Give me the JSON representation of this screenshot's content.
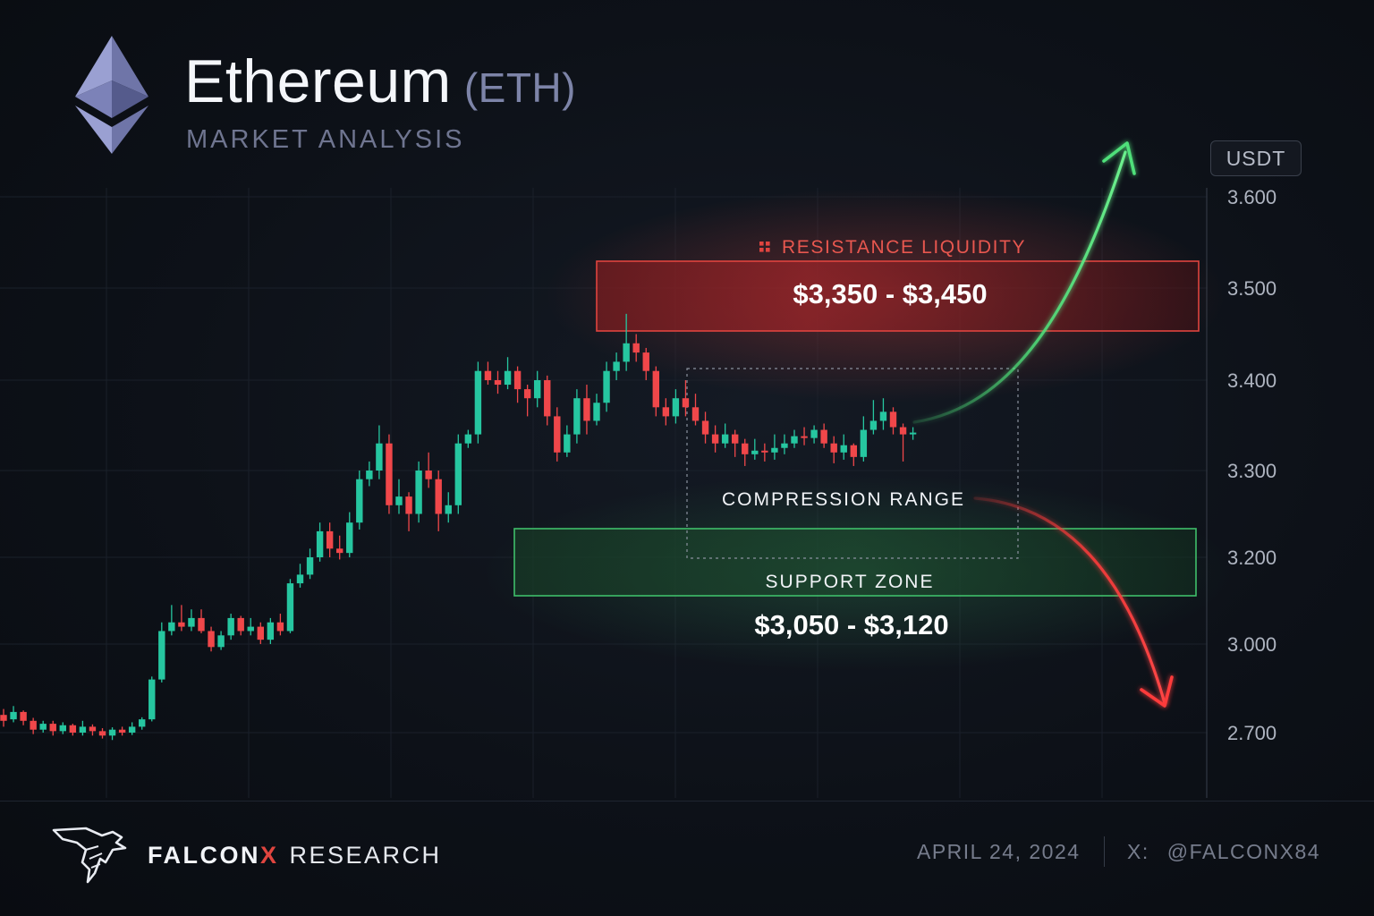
{
  "header": {
    "title": "Ethereum",
    "ticker": "(ETH)",
    "subtitle": "MARKET ANALYSIS",
    "unit_label": "USDT"
  },
  "colors": {
    "bull": "#26c6a0",
    "bear": "#f0474a",
    "resistance": "#e0443f",
    "support": "#3fbf6a",
    "up_arrow": "#4fe07a",
    "down_arrow": "#ff3b3b",
    "eth_logo": "#8d93c4"
  },
  "chart_data": {
    "type": "candlestick",
    "y_axis": {
      "tick_labels": [
        "3.600",
        "3.500",
        "3.400",
        "3.300",
        "3.200",
        "3.000",
        "2.700"
      ],
      "side": "right"
    },
    "grid": true,
    "candles": [
      [
        2760,
        2740,
        2780,
        2720
      ],
      [
        2745,
        2770,
        2790,
        2735
      ],
      [
        2770,
        2740,
        2775,
        2725
      ],
      [
        2740,
        2710,
        2750,
        2695
      ],
      [
        2710,
        2730,
        2740,
        2700
      ],
      [
        2730,
        2705,
        2740,
        2690
      ],
      [
        2705,
        2725,
        2735,
        2695
      ],
      [
        2725,
        2700,
        2730,
        2690
      ],
      [
        2700,
        2720,
        2740,
        2690
      ],
      [
        2720,
        2705,
        2728,
        2690
      ],
      [
        2705,
        2690,
        2715,
        2680
      ],
      [
        2690,
        2710,
        2718,
        2675
      ],
      [
        2710,
        2700,
        2720,
        2690
      ],
      [
        2700,
        2720,
        2735,
        2692
      ],
      [
        2720,
        2745,
        2752,
        2710
      ],
      [
        2745,
        2880,
        2890,
        2738
      ],
      [
        2880,
        3030,
        3050,
        2870
      ],
      [
        3030,
        3050,
        3090,
        3020
      ],
      [
        3050,
        3040,
        3090,
        3030
      ],
      [
        3040,
        3060,
        3080,
        3030
      ],
      [
        3060,
        3030,
        3080,
        3025
      ],
      [
        3030,
        2990,
        3040,
        2975
      ],
      [
        2990,
        3020,
        3030,
        2980
      ],
      [
        3020,
        3060,
        3070,
        3010
      ],
      [
        3060,
        3030,
        3065,
        3020
      ],
      [
        3030,
        3040,
        3060,
        3020
      ],
      [
        3040,
        3010,
        3050,
        3000
      ],
      [
        3010,
        3050,
        3060,
        3000
      ],
      [
        3050,
        3030,
        3070,
        3020
      ],
      [
        3030,
        3140,
        3150,
        3025
      ],
      [
        3140,
        3160,
        3185,
        3130
      ],
      [
        3160,
        3200,
        3210,
        3150
      ],
      [
        3200,
        3230,
        3240,
        3190
      ],
      [
        3230,
        3210,
        3240,
        3200
      ],
      [
        3210,
        3205,
        3225,
        3195
      ],
      [
        3205,
        3240,
        3252,
        3200
      ],
      [
        3240,
        3290,
        3300,
        3232
      ],
      [
        3290,
        3300,
        3310,
        3282
      ],
      [
        3300,
        3330,
        3350,
        3290
      ],
      [
        3330,
        3260,
        3340,
        3250
      ],
      [
        3260,
        3270,
        3290,
        3250
      ],
      [
        3270,
        3250,
        3275,
        3230
      ],
      [
        3250,
        3300,
        3310,
        3240
      ],
      [
        3300,
        3290,
        3320,
        3280
      ],
      [
        3290,
        3250,
        3300,
        3230
      ],
      [
        3250,
        3260,
        3275,
        3240
      ],
      [
        3260,
        3330,
        3340,
        3250
      ],
      [
        3330,
        3340,
        3345,
        3325
      ],
      [
        3340,
        3410,
        3420,
        3330
      ],
      [
        3410,
        3400,
        3420,
        3395
      ],
      [
        3400,
        3395,
        3410,
        3385
      ],
      [
        3395,
        3410,
        3425,
        3390
      ],
      [
        3410,
        3390,
        3415,
        3375
      ],
      [
        3390,
        3380,
        3395,
        3360
      ],
      [
        3380,
        3400,
        3410,
        3370
      ],
      [
        3400,
        3360,
        3405,
        3350
      ],
      [
        3360,
        3320,
        3370,
        3310
      ],
      [
        3320,
        3340,
        3350,
        3315
      ],
      [
        3340,
        3380,
        3390,
        3330
      ],
      [
        3380,
        3355,
        3395,
        3340
      ],
      [
        3355,
        3375,
        3385,
        3350
      ],
      [
        3375,
        3410,
        3420,
        3365
      ],
      [
        3410,
        3420,
        3430,
        3400
      ],
      [
        3420,
        3440,
        3472,
        3410
      ],
      [
        3440,
        3430,
        3450,
        3420
      ],
      [
        3430,
        3410,
        3435,
        3400
      ],
      [
        3410,
        3370,
        3415,
        3360
      ],
      [
        3370,
        3360,
        3380,
        3350
      ],
      [
        3360,
        3380,
        3390,
        3352
      ],
      [
        3380,
        3370,
        3400,
        3360
      ],
      [
        3370,
        3355,
        3385,
        3350
      ],
      [
        3355,
        3340,
        3365,
        3330
      ],
      [
        3340,
        3330,
        3350,
        3320
      ],
      [
        3330,
        3340,
        3352,
        3325
      ],
      [
        3340,
        3330,
        3345,
        3315
      ],
      [
        3330,
        3318,
        3335,
        3305
      ],
      [
        3318,
        3322,
        3335,
        3312
      ],
      [
        3322,
        3320,
        3330,
        3310
      ],
      [
        3320,
        3325,
        3340,
        3312
      ],
      [
        3325,
        3330,
        3340,
        3318
      ],
      [
        3330,
        3338,
        3345,
        3325
      ],
      [
        3338,
        3336,
        3348,
        3328
      ],
      [
        3336,
        3345,
        3350,
        3330
      ],
      [
        3345,
        3330,
        3352,
        3325
      ],
      [
        3330,
        3320,
        3338,
        3308
      ],
      [
        3320,
        3328,
        3340,
        3312
      ],
      [
        3328,
        3315,
        3330,
        3305
      ],
      [
        3315,
        3345,
        3360,
        3310
      ],
      [
        3345,
        3355,
        3378,
        3340
      ],
      [
        3355,
        3365,
        3380,
        3345
      ],
      [
        3365,
        3348,
        3370,
        3340
      ],
      [
        3348,
        3340,
        3352,
        3310
      ],
      [
        3340,
        3342,
        3348,
        3334
      ]
    ],
    "resistance": {
      "title": "RESISTANCE LIQUIDITY",
      "range_label": "$3,350 - $3,450"
    },
    "support": {
      "title": "SUPPORT ZONE",
      "range_label": "$3,050 - $3,120"
    },
    "compression": {
      "label": "COMPRESSION RANGE"
    },
    "scenarios": [
      {
        "direction": "up",
        "color": "#4fe07a"
      },
      {
        "direction": "down",
        "color": "#ff3b3b"
      }
    ]
  },
  "footer": {
    "brand_name": "FALCON",
    "brand_x": "X",
    "brand_suffix": "RESEARCH",
    "date": "APRIL 24, 2024",
    "social_prefix": "X:",
    "social_handle": "@FALCONX84"
  }
}
